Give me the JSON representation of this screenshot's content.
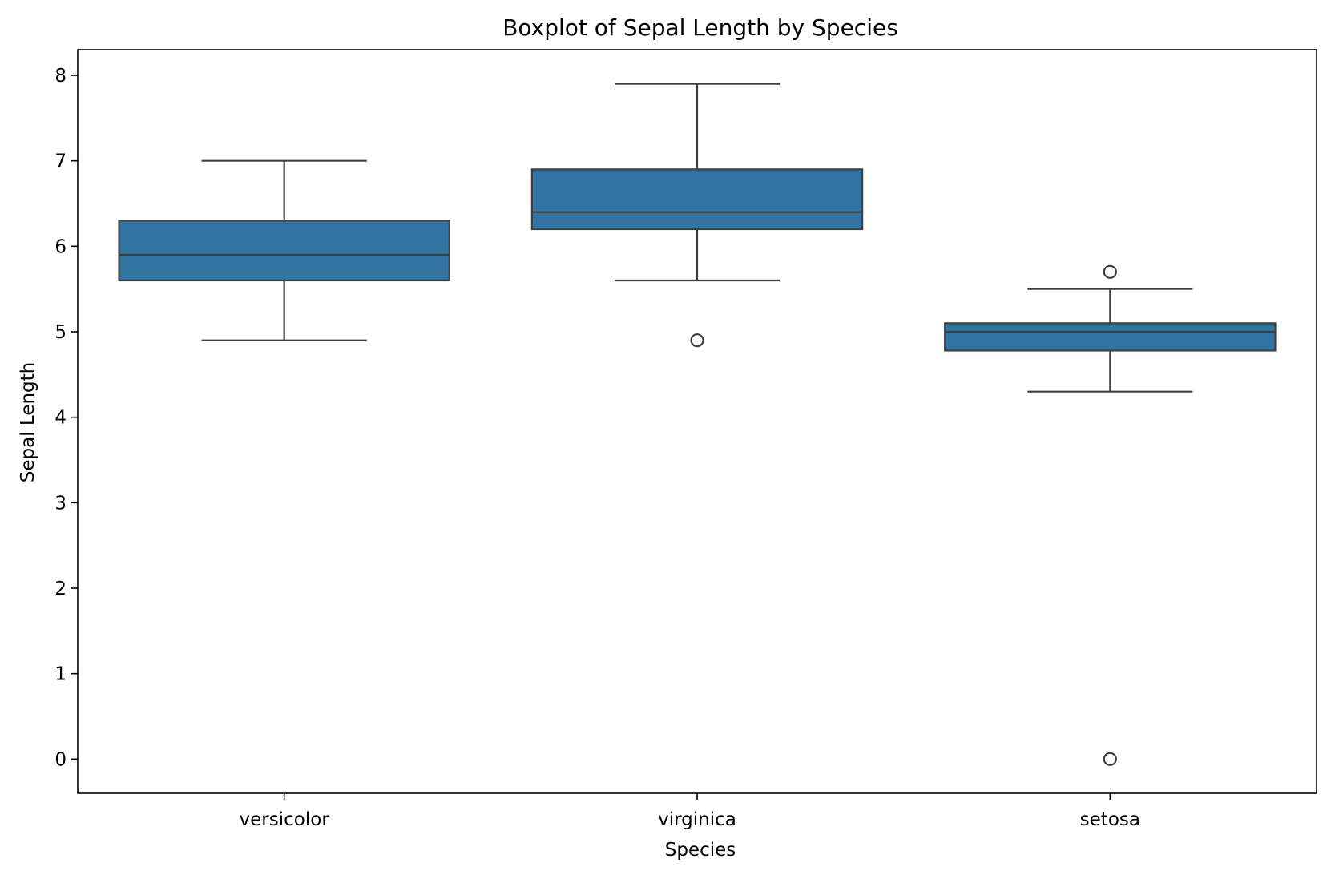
{
  "chart_data": {
    "type": "box",
    "title": "Boxplot of Sepal Length by Species",
    "xlabel": "Species",
    "ylabel": "Sepal Length",
    "ylim": [
      -0.4,
      8.3
    ],
    "yticks": [
      "0",
      "1",
      "2",
      "3",
      "4",
      "5",
      "6",
      "7",
      "8"
    ],
    "categories": [
      "versicolor",
      "virginica",
      "setosa"
    ],
    "boxes": [
      {
        "name": "versicolor",
        "whisker_low": 4.9,
        "q1": 5.6,
        "median": 5.9,
        "q3": 6.3,
        "whisker_high": 7.0,
        "outliers": []
      },
      {
        "name": "virginica",
        "whisker_low": 5.6,
        "q1": 6.2,
        "median": 6.4,
        "q3": 6.9,
        "whisker_high": 7.9,
        "outliers": [
          4.9
        ]
      },
      {
        "name": "setosa",
        "whisker_low": 4.3,
        "q1": 4.78,
        "median": 5.0,
        "q3": 5.1,
        "whisker_high": 5.5,
        "outliers": [
          5.7,
          0.0
        ]
      }
    ],
    "colors": {
      "box_fill": "#3274a1",
      "line": "#3f3f3f",
      "axis": "#000000"
    },
    "grid": false
  }
}
